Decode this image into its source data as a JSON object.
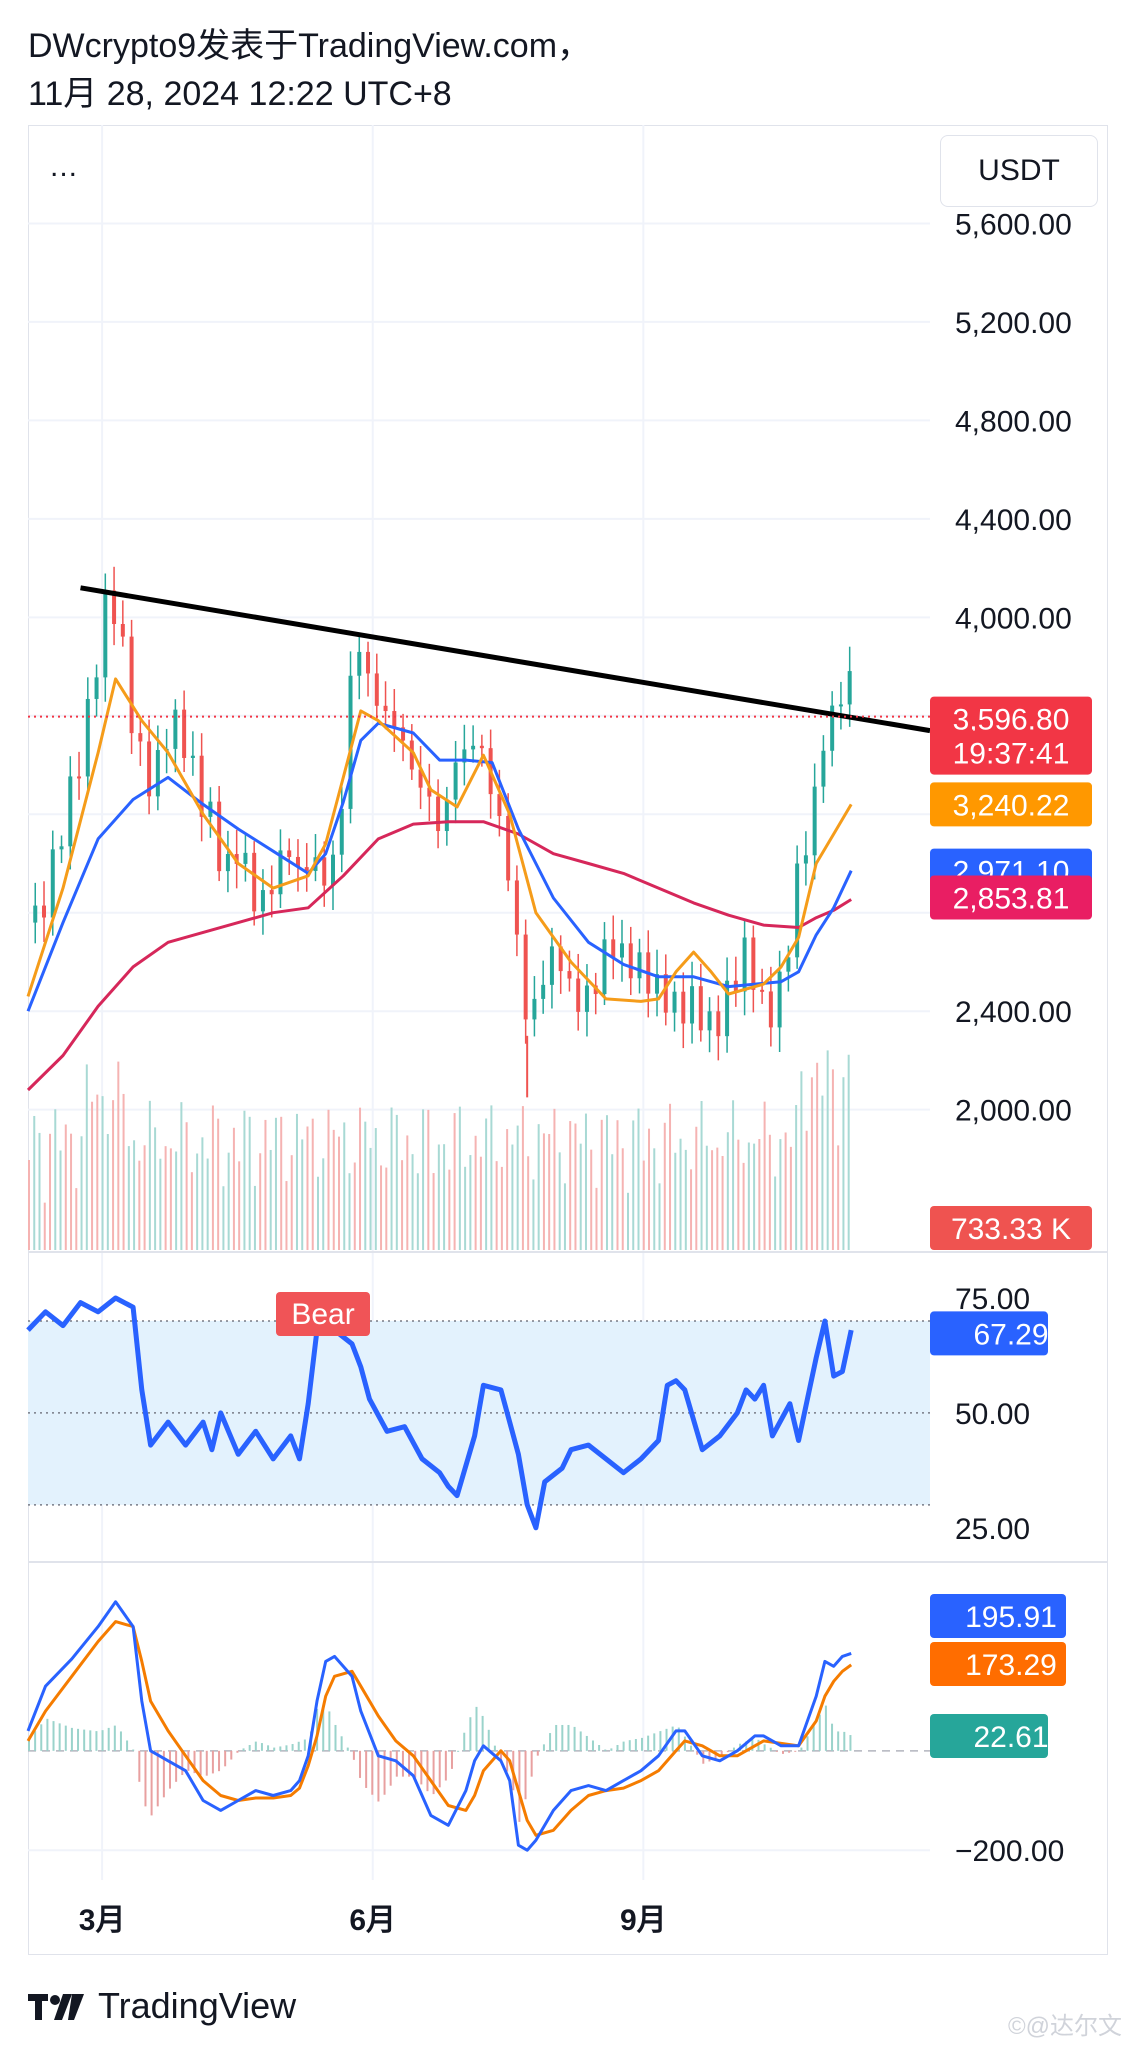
{
  "header": {
    "line1": "DWcrypto9发表于TradingView.com，",
    "line2": "11月 28, 2024 12:22 UTC+8"
  },
  "toolbar": {
    "more": "...",
    "currency": "USDT"
  },
  "footer": {
    "brand": "TradingView",
    "watermark": "©@达尔文"
  },
  "colors": {
    "up": "#26a69a",
    "down": "#ef5350",
    "ema_orange": "#f59c1a",
    "ema_blue": "#2962ff",
    "ema_red": "#d6275a",
    "trendline": "#000000",
    "rsi_line": "#2962ff",
    "rsi_band": "#e3f2fd",
    "macd_line": "#2962ff",
    "signal_line": "#f57c00"
  },
  "chart_data": [
    {
      "type": "line",
      "panel": "price",
      "y_ticks": [
        2000,
        2400,
        2800,
        3200,
        3600,
        4000,
        4400,
        4800,
        5200,
        5600
      ],
      "y_tick_labels": [
        "2,000.00",
        "2,400.00",
        "",
        "",
        "",
        "4,000.00",
        "4,400.00",
        "4,800.00",
        "5,200.00",
        "5,600.00"
      ],
      "ylim": [
        1430,
        6000
      ],
      "x_labels": [
        "3月",
        "6月",
        "9月"
      ],
      "x_label_pos": [
        0.06,
        0.36,
        0.66
      ],
      "price_path": [
        [
          0,
          2760
        ],
        [
          2,
          2900
        ],
        [
          4,
          3150
        ],
        [
          6,
          3500
        ],
        [
          8,
          3950
        ],
        [
          9,
          4100
        ],
        [
          10,
          3950
        ],
        [
          12,
          3500
        ],
        [
          14,
          3350
        ],
        [
          16,
          3550
        ],
        [
          18,
          3450
        ],
        [
          20,
          3250
        ],
        [
          21,
          3200
        ],
        [
          22,
          2900
        ],
        [
          24,
          3050
        ],
        [
          26,
          2850
        ],
        [
          28,
          2950
        ],
        [
          30,
          3050
        ],
        [
          31,
          2850
        ],
        [
          32,
          3150
        ],
        [
          33,
          2950
        ],
        [
          35,
          3000
        ],
        [
          36,
          3350
        ],
        [
          37,
          3950
        ],
        [
          38,
          3850
        ],
        [
          40,
          3650
        ],
        [
          42,
          3500
        ],
        [
          44,
          3350
        ],
        [
          46,
          3300
        ],
        [
          47,
          3050
        ],
        [
          48,
          3350
        ],
        [
          50,
          3450
        ],
        [
          51,
          3550
        ],
        [
          52,
          3450
        ],
        [
          53,
          3250
        ],
        [
          54,
          3100
        ],
        [
          55,
          2800
        ],
        [
          56,
          2550
        ],
        [
          57,
          2300
        ],
        [
          58,
          2550
        ],
        [
          60,
          2650
        ],
        [
          62,
          2400
        ],
        [
          64,
          2500
        ],
        [
          66,
          2700
        ],
        [
          68,
          2550
        ],
        [
          70,
          2600
        ],
        [
          72,
          2500
        ],
        [
          74,
          2350
        ],
        [
          76,
          2450
        ],
        [
          78,
          2350
        ],
        [
          80,
          2450
        ],
        [
          82,
          2650
        ],
        [
          84,
          2400
        ],
        [
          86,
          2500
        ],
        [
          88,
          3000
        ],
        [
          90,
          3350
        ],
        [
          91,
          3700
        ],
        [
          92,
          3500
        ],
        [
          93,
          3800
        ],
        [
          94,
          3600
        ]
      ],
      "ema_orange": [
        [
          0,
          2460
        ],
        [
          4,
          2900
        ],
        [
          8,
          3450
        ],
        [
          10,
          3750
        ],
        [
          13,
          3580
        ],
        [
          16,
          3450
        ],
        [
          20,
          3200
        ],
        [
          24,
          3000
        ],
        [
          28,
          2900
        ],
        [
          32,
          2950
        ],
        [
          34,
          3080
        ],
        [
          36,
          3350
        ],
        [
          38,
          3620
        ],
        [
          40,
          3580
        ],
        [
          44,
          3450
        ],
        [
          46,
          3300
        ],
        [
          49,
          3230
        ],
        [
          52,
          3440
        ],
        [
          55,
          3200
        ],
        [
          58,
          2800
        ],
        [
          62,
          2600
        ],
        [
          66,
          2450
        ],
        [
          70,
          2440
        ],
        [
          72,
          2450
        ],
        [
          74,
          2560
        ],
        [
          76,
          2640
        ],
        [
          78,
          2560
        ],
        [
          80,
          2470
        ],
        [
          84,
          2510
        ],
        [
          86,
          2580
        ],
        [
          88,
          2700
        ],
        [
          90,
          3000
        ],
        [
          92,
          3120
        ],
        [
          94,
          3240
        ]
      ],
      "ema_blue": [
        [
          0,
          2400
        ],
        [
          4,
          2760
        ],
        [
          8,
          3100
        ],
        [
          12,
          3260
        ],
        [
          16,
          3350
        ],
        [
          20,
          3240
        ],
        [
          24,
          3140
        ],
        [
          28,
          3050
        ],
        [
          32,
          2960
        ],
        [
          34,
          3040
        ],
        [
          36,
          3250
        ],
        [
          38,
          3500
        ],
        [
          40,
          3570
        ],
        [
          44,
          3530
        ],
        [
          47,
          3420
        ],
        [
          50,
          3420
        ],
        [
          53,
          3410
        ],
        [
          56,
          3140
        ],
        [
          60,
          2860
        ],
        [
          64,
          2680
        ],
        [
          68,
          2590
        ],
        [
          72,
          2540
        ],
        [
          76,
          2540
        ],
        [
          80,
          2500
        ],
        [
          86,
          2520
        ],
        [
          88,
          2560
        ],
        [
          90,
          2710
        ],
        [
          92,
          2820
        ],
        [
          94,
          2971
        ]
      ],
      "ema_red": [
        [
          0,
          2080
        ],
        [
          4,
          2220
        ],
        [
          8,
          2420
        ],
        [
          12,
          2580
        ],
        [
          16,
          2680
        ],
        [
          20,
          2720
        ],
        [
          24,
          2760
        ],
        [
          28,
          2800
        ],
        [
          32,
          2820
        ],
        [
          36,
          2950
        ],
        [
          40,
          3100
        ],
        [
          44,
          3160
        ],
        [
          48,
          3170
        ],
        [
          52,
          3170
        ],
        [
          56,
          3120
        ],
        [
          60,
          3040
        ],
        [
          64,
          3000
        ],
        [
          68,
          2960
        ],
        [
          72,
          2900
        ],
        [
          76,
          2840
        ],
        [
          80,
          2790
        ],
        [
          84,
          2750
        ],
        [
          88,
          2740
        ],
        [
          90,
          2780
        ],
        [
          92,
          2810
        ],
        [
          94,
          2854
        ]
      ],
      "trendline": [
        [
          6,
          4120
        ],
        [
          103,
          3540
        ]
      ],
      "current_price_line": 3596.8,
      "price_labels": [
        {
          "value": "3,596.80",
          "color": "#f23645",
          "y": 3596.8
        },
        {
          "value": "19:37:41",
          "color": "#f23645",
          "y": 3440
        },
        {
          "value": "3,240.22",
          "color": "#ff9800",
          "y": 3240.22
        },
        {
          "value": "2,971.10",
          "color": "#2962ff",
          "y": 2971.1
        },
        {
          "value": "2,853.81",
          "color": "#e91e63",
          "y": 2853.81
        }
      ],
      "volume_label": {
        "value": "733.33 K",
        "color": "#ef5350"
      }
    },
    {
      "type": "line",
      "panel": "rsi",
      "y_ticks": [
        25,
        50,
        75
      ],
      "y_tick_labels": [
        "25.00",
        "50.00",
        "75.00"
      ],
      "band": [
        30,
        70
      ],
      "ylim": [
        18,
        85
      ],
      "annotation": {
        "text": "Bear",
        "color": "#f05457"
      },
      "current": {
        "value": "67.29",
        "color": "#2962ff"
      },
      "rsi": [
        [
          0,
          68
        ],
        [
          2,
          72
        ],
        [
          4,
          69
        ],
        [
          6,
          74
        ],
        [
          8,
          72
        ],
        [
          10,
          75
        ],
        [
          12,
          73
        ],
        [
          13,
          55
        ],
        [
          14,
          43
        ],
        [
          16,
          48
        ],
        [
          18,
          43
        ],
        [
          20,
          48
        ],
        [
          21,
          42
        ],
        [
          22,
          50
        ],
        [
          24,
          41
        ],
        [
          26,
          46
        ],
        [
          28,
          40
        ],
        [
          30,
          45
        ],
        [
          31,
          40
        ],
        [
          32,
          52
        ],
        [
          33,
          68
        ],
        [
          34,
          72
        ],
        [
          35,
          68
        ],
        [
          37,
          65
        ],
        [
          38,
          60
        ],
        [
          39,
          53
        ],
        [
          41,
          46
        ],
        [
          43,
          47
        ],
        [
          45,
          40
        ],
        [
          47,
          37
        ],
        [
          48,
          34
        ],
        [
          49,
          32
        ],
        [
          51,
          45
        ],
        [
          52,
          56
        ],
        [
          54,
          55
        ],
        [
          55,
          48
        ],
        [
          56,
          41
        ],
        [
          57,
          30
        ],
        [
          58,
          25
        ],
        [
          59,
          35
        ],
        [
          61,
          38
        ],
        [
          62,
          42
        ],
        [
          64,
          43
        ],
        [
          66,
          40
        ],
        [
          68,
          37
        ],
        [
          70,
          40
        ],
        [
          72,
          44
        ],
        [
          73,
          56
        ],
        [
          74,
          57
        ],
        [
          75,
          55
        ],
        [
          77,
          42
        ],
        [
          79,
          45
        ],
        [
          81,
          50
        ],
        [
          82,
          55
        ],
        [
          83,
          53
        ],
        [
          84,
          56
        ],
        [
          85,
          45
        ],
        [
          87,
          52
        ],
        [
          88,
          44
        ],
        [
          90,
          62
        ],
        [
          91,
          70
        ],
        [
          92,
          58
        ],
        [
          93,
          59
        ],
        [
          94,
          68
        ]
      ]
    },
    {
      "type": "line",
      "panel": "macd",
      "y_ticks": [
        -200
      ],
      "y_tick_labels": [
        "−200.00"
      ],
      "ylim": [
        -260,
        380
      ],
      "labels": [
        {
          "value": "195.91",
          "color": "#2962ff",
          "y": 195.91
        },
        {
          "value": "173.29",
          "color": "#ff6d00",
          "y": 173.29
        },
        {
          "value": "22.61",
          "color": "#26a69a",
          "y": 22.61
        }
      ],
      "macd": [
        [
          0,
          40
        ],
        [
          2,
          130
        ],
        [
          5,
          185
        ],
        [
          8,
          250
        ],
        [
          10,
          300
        ],
        [
          12,
          250
        ],
        [
          13,
          100
        ],
        [
          14,
          0
        ],
        [
          16,
          -20
        ],
        [
          18,
          -40
        ],
        [
          20,
          -100
        ],
        [
          22,
          -120
        ],
        [
          24,
          -100
        ],
        [
          26,
          -80
        ],
        [
          28,
          -90
        ],
        [
          30,
          -80
        ],
        [
          31,
          -60
        ],
        [
          32,
          -10
        ],
        [
          33,
          100
        ],
        [
          34,
          180
        ],
        [
          35,
          190
        ],
        [
          37,
          150
        ],
        [
          38,
          80
        ],
        [
          40,
          -10
        ],
        [
          42,
          -20
        ],
        [
          44,
          -50
        ],
        [
          46,
          -130
        ],
        [
          48,
          -150
        ],
        [
          50,
          -80
        ],
        [
          51,
          -20
        ],
        [
          52,
          10
        ],
        [
          54,
          -20
        ],
        [
          55,
          -60
        ],
        [
          56,
          -190
        ],
        [
          57,
          -200
        ],
        [
          58,
          -180
        ],
        [
          60,
          -120
        ],
        [
          62,
          -80
        ],
        [
          64,
          -70
        ],
        [
          66,
          -80
        ],
        [
          68,
          -60
        ],
        [
          70,
          -40
        ],
        [
          72,
          -10
        ],
        [
          74,
          40
        ],
        [
          75,
          40
        ],
        [
          77,
          -10
        ],
        [
          79,
          -20
        ],
        [
          81,
          0
        ],
        [
          83,
          30
        ],
        [
          84,
          30
        ],
        [
          86,
          10
        ],
        [
          88,
          10
        ],
        [
          90,
          110
        ],
        [
          91,
          180
        ],
        [
          92,
          170
        ],
        [
          93,
          190
        ],
        [
          94,
          196
        ]
      ],
      "signal": [
        [
          0,
          20
        ],
        [
          2,
          80
        ],
        [
          5,
          150
        ],
        [
          8,
          220
        ],
        [
          10,
          260
        ],
        [
          12,
          250
        ],
        [
          13,
          180
        ],
        [
          14,
          100
        ],
        [
          16,
          40
        ],
        [
          18,
          -10
        ],
        [
          20,
          -60
        ],
        [
          22,
          -90
        ],
        [
          24,
          -100
        ],
        [
          26,
          -95
        ],
        [
          28,
          -95
        ],
        [
          30,
          -90
        ],
        [
          31,
          -75
        ],
        [
          32,
          -30
        ],
        [
          33,
          30
        ],
        [
          34,
          110
        ],
        [
          35,
          150
        ],
        [
          37,
          160
        ],
        [
          38,
          130
        ],
        [
          40,
          70
        ],
        [
          42,
          20
        ],
        [
          44,
          -10
        ],
        [
          46,
          -60
        ],
        [
          48,
          -110
        ],
        [
          50,
          -120
        ],
        [
          51,
          -90
        ],
        [
          52,
          -40
        ],
        [
          54,
          0
        ],
        [
          55,
          -20
        ],
        [
          56,
          -80
        ],
        [
          57,
          -140
        ],
        [
          58,
          -170
        ],
        [
          60,
          -160
        ],
        [
          62,
          -120
        ],
        [
          64,
          -90
        ],
        [
          66,
          -80
        ],
        [
          68,
          -75
        ],
        [
          70,
          -60
        ],
        [
          72,
          -40
        ],
        [
          74,
          0
        ],
        [
          75,
          20
        ],
        [
          77,
          10
        ],
        [
          79,
          -10
        ],
        [
          81,
          -10
        ],
        [
          83,
          10
        ],
        [
          84,
          20
        ],
        [
          86,
          15
        ],
        [
          88,
          10
        ],
        [
          90,
          60
        ],
        [
          91,
          110
        ],
        [
          92,
          140
        ],
        [
          93,
          160
        ],
        [
          94,
          173
        ]
      ]
    }
  ]
}
